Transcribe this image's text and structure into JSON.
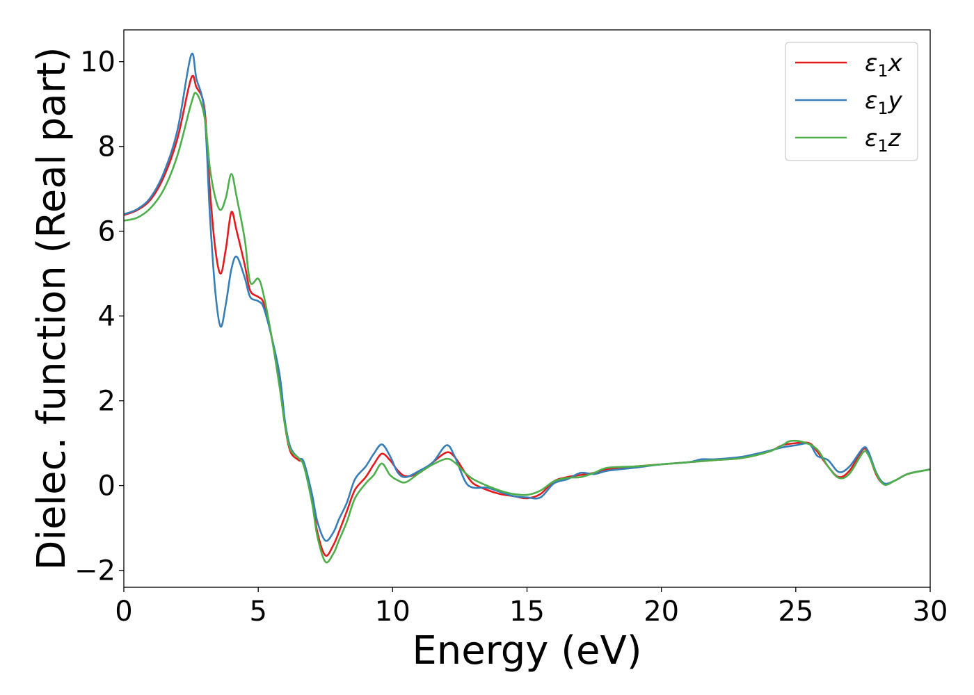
{
  "chart_data": {
    "type": "line",
    "xlabel": "Energy (eV)",
    "ylabel": "Dielec. function (Real part)",
    "xlim": [
      0,
      30
    ],
    "ylim": [
      -2.4,
      10.75
    ],
    "xticks": [
      0,
      5,
      10,
      15,
      20,
      25,
      30
    ],
    "yticks": [
      -2,
      0,
      2,
      4,
      6,
      8,
      10
    ],
    "xtick_labels": [
      "0",
      "5",
      "10",
      "15",
      "20",
      "25",
      "30"
    ],
    "ytick_labels": [
      "−2",
      "0",
      "2",
      "4",
      "6",
      "8",
      "10"
    ],
    "grid": false,
    "legend_position": "top-right",
    "series": [
      {
        "name": "ε1x",
        "label_base": "ε",
        "label_sub": "1",
        "label_var": "x",
        "color": "#e41a1c",
        "points": [
          [
            0,
            6.38
          ],
          [
            0.5,
            6.5
          ],
          [
            1.0,
            6.75
          ],
          [
            1.5,
            7.3
          ],
          [
            2.0,
            8.2
          ],
          [
            2.5,
            9.6
          ],
          [
            2.7,
            9.4
          ],
          [
            3.0,
            8.9
          ],
          [
            3.2,
            7.0
          ],
          [
            3.4,
            5.6
          ],
          [
            3.6,
            5.0
          ],
          [
            3.8,
            5.6
          ],
          [
            4.0,
            6.45
          ],
          [
            4.2,
            6.0
          ],
          [
            4.5,
            5.2
          ],
          [
            4.7,
            4.6
          ],
          [
            5.0,
            4.45
          ],
          [
            5.2,
            4.3
          ],
          [
            5.5,
            3.5
          ],
          [
            5.8,
            2.4
          ],
          [
            6.0,
            1.4
          ],
          [
            6.2,
            0.8
          ],
          [
            6.5,
            0.6
          ],
          [
            6.7,
            0.5
          ],
          [
            7.0,
            -0.3
          ],
          [
            7.2,
            -1.1
          ],
          [
            7.5,
            -1.65
          ],
          [
            7.8,
            -1.4
          ],
          [
            8.0,
            -1.1
          ],
          [
            8.3,
            -0.6
          ],
          [
            8.6,
            -0.1
          ],
          [
            9.0,
            0.2
          ],
          [
            9.3,
            0.5
          ],
          [
            9.6,
            0.75
          ],
          [
            9.9,
            0.6
          ],
          [
            10.2,
            0.35
          ],
          [
            10.5,
            0.22
          ],
          [
            11.0,
            0.3
          ],
          [
            11.5,
            0.55
          ],
          [
            12.0,
            0.78
          ],
          [
            12.3,
            0.68
          ],
          [
            12.7,
            0.3
          ],
          [
            13.0,
            0.05
          ],
          [
            13.5,
            -0.1
          ],
          [
            14.0,
            -0.2
          ],
          [
            14.5,
            -0.25
          ],
          [
            15.0,
            -0.3
          ],
          [
            15.5,
            -0.2
          ],
          [
            16.0,
            0.1
          ],
          [
            16.5,
            0.2
          ],
          [
            17.0,
            0.25
          ],
          [
            17.5,
            0.3
          ],
          [
            18.0,
            0.38
          ],
          [
            19.0,
            0.45
          ],
          [
            20.0,
            0.5
          ],
          [
            21.0,
            0.55
          ],
          [
            22.0,
            0.6
          ],
          [
            23.0,
            0.65
          ],
          [
            24.0,
            0.8
          ],
          [
            24.5,
            0.95
          ],
          [
            25.0,
            1.0
          ],
          [
            25.5,
            1.0
          ],
          [
            25.8,
            0.8
          ],
          [
            26.2,
            0.45
          ],
          [
            26.6,
            0.2
          ],
          [
            27.0,
            0.35
          ],
          [
            27.5,
            0.85
          ],
          [
            27.7,
            0.75
          ],
          [
            28.0,
            0.25
          ],
          [
            28.3,
            0.03
          ],
          [
            28.7,
            0.12
          ],
          [
            29.2,
            0.28
          ],
          [
            30,
            0.38
          ]
        ]
      },
      {
        "name": "ε1y",
        "label_base": "ε",
        "label_sub": "1",
        "label_var": "y",
        "color": "#377eb8",
        "points": [
          [
            0,
            6.4
          ],
          [
            0.5,
            6.52
          ],
          [
            1.0,
            6.8
          ],
          [
            1.5,
            7.4
          ],
          [
            2.0,
            8.4
          ],
          [
            2.5,
            10.15
          ],
          [
            2.7,
            9.6
          ],
          [
            3.0,
            8.8
          ],
          [
            3.2,
            6.4
          ],
          [
            3.4,
            4.6
          ],
          [
            3.6,
            3.75
          ],
          [
            3.8,
            4.3
          ],
          [
            4.0,
            5.1
          ],
          [
            4.2,
            5.4
          ],
          [
            4.5,
            4.9
          ],
          [
            4.7,
            4.45
          ],
          [
            5.0,
            4.35
          ],
          [
            5.2,
            4.2
          ],
          [
            5.5,
            3.5
          ],
          [
            5.8,
            2.6
          ],
          [
            6.0,
            1.5
          ],
          [
            6.2,
            0.9
          ],
          [
            6.5,
            0.65
          ],
          [
            6.7,
            0.55
          ],
          [
            7.0,
            -0.2
          ],
          [
            7.2,
            -0.85
          ],
          [
            7.5,
            -1.3
          ],
          [
            7.8,
            -1.1
          ],
          [
            8.0,
            -0.8
          ],
          [
            8.3,
            -0.4
          ],
          [
            8.6,
            0.15
          ],
          [
            9.0,
            0.45
          ],
          [
            9.3,
            0.75
          ],
          [
            9.6,
            0.97
          ],
          [
            9.9,
            0.7
          ],
          [
            10.2,
            0.3
          ],
          [
            10.5,
            0.2
          ],
          [
            11.0,
            0.35
          ],
          [
            11.5,
            0.55
          ],
          [
            12.0,
            0.95
          ],
          [
            12.3,
            0.7
          ],
          [
            12.7,
            0.1
          ],
          [
            13.0,
            -0.05
          ],
          [
            13.5,
            -0.05
          ],
          [
            14.0,
            -0.15
          ],
          [
            14.5,
            -0.25
          ],
          [
            15.0,
            -0.28
          ],
          [
            15.5,
            -0.28
          ],
          [
            16.0,
            0.05
          ],
          [
            16.5,
            0.15
          ],
          [
            17.0,
            0.3
          ],
          [
            17.5,
            0.27
          ],
          [
            18.0,
            0.35
          ],
          [
            19.0,
            0.42
          ],
          [
            20.0,
            0.5
          ],
          [
            21.0,
            0.55
          ],
          [
            21.5,
            0.62
          ],
          [
            22.0,
            0.62
          ],
          [
            23.0,
            0.68
          ],
          [
            24.0,
            0.82
          ],
          [
            24.5,
            0.9
          ],
          [
            25.0,
            0.95
          ],
          [
            25.5,
            0.98
          ],
          [
            25.8,
            0.7
          ],
          [
            26.2,
            0.6
          ],
          [
            26.6,
            0.32
          ],
          [
            27.0,
            0.45
          ],
          [
            27.5,
            0.88
          ],
          [
            27.7,
            0.8
          ],
          [
            28.0,
            0.3
          ],
          [
            28.3,
            0.05
          ],
          [
            28.7,
            0.12
          ],
          [
            29.2,
            0.28
          ],
          [
            30,
            0.38
          ]
        ]
      },
      {
        "name": "ε1z",
        "label_base": "ε",
        "label_sub": "1",
        "label_var": "z",
        "color": "#4daf4a",
        "points": [
          [
            0,
            6.25
          ],
          [
            0.5,
            6.32
          ],
          [
            1.0,
            6.55
          ],
          [
            1.5,
            7.0
          ],
          [
            2.0,
            7.8
          ],
          [
            2.5,
            9.0
          ],
          [
            2.7,
            9.25
          ],
          [
            3.0,
            8.7
          ],
          [
            3.2,
            7.5
          ],
          [
            3.4,
            6.8
          ],
          [
            3.6,
            6.5
          ],
          [
            3.8,
            6.8
          ],
          [
            4.0,
            7.35
          ],
          [
            4.2,
            6.8
          ],
          [
            4.5,
            5.8
          ],
          [
            4.7,
            4.8
          ],
          [
            5.0,
            4.88
          ],
          [
            5.2,
            4.5
          ],
          [
            5.5,
            3.5
          ],
          [
            5.8,
            2.3
          ],
          [
            6.0,
            1.4
          ],
          [
            6.2,
            0.85
          ],
          [
            6.5,
            0.65
          ],
          [
            6.7,
            0.45
          ],
          [
            7.0,
            -0.4
          ],
          [
            7.2,
            -1.2
          ],
          [
            7.5,
            -1.8
          ],
          [
            7.8,
            -1.6
          ],
          [
            8.0,
            -1.3
          ],
          [
            8.3,
            -0.85
          ],
          [
            8.6,
            -0.3
          ],
          [
            9.0,
            0.05
          ],
          [
            9.3,
            0.25
          ],
          [
            9.6,
            0.52
          ],
          [
            9.9,
            0.25
          ],
          [
            10.2,
            0.12
          ],
          [
            10.5,
            0.08
          ],
          [
            11.0,
            0.3
          ],
          [
            11.5,
            0.5
          ],
          [
            12.0,
            0.63
          ],
          [
            12.3,
            0.55
          ],
          [
            12.7,
            0.3
          ],
          [
            13.0,
            0.15
          ],
          [
            13.5,
            0.0
          ],
          [
            14.0,
            -0.12
          ],
          [
            14.5,
            -0.2
          ],
          [
            15.0,
            -0.22
          ],
          [
            15.5,
            -0.12
          ],
          [
            16.0,
            0.1
          ],
          [
            16.5,
            0.18
          ],
          [
            17.0,
            0.2
          ],
          [
            17.5,
            0.3
          ],
          [
            18.0,
            0.42
          ],
          [
            19.0,
            0.45
          ],
          [
            20.0,
            0.5
          ],
          [
            21.0,
            0.55
          ],
          [
            22.0,
            0.6
          ],
          [
            23.0,
            0.65
          ],
          [
            24.0,
            0.8
          ],
          [
            24.5,
            0.95
          ],
          [
            24.8,
            1.05
          ],
          [
            25.3,
            1.02
          ],
          [
            25.8,
            0.85
          ],
          [
            26.2,
            0.45
          ],
          [
            26.6,
            0.18
          ],
          [
            27.0,
            0.28
          ],
          [
            27.5,
            0.78
          ],
          [
            27.7,
            0.72
          ],
          [
            28.0,
            0.28
          ],
          [
            28.3,
            0.02
          ],
          [
            28.7,
            0.12
          ],
          [
            29.2,
            0.28
          ],
          [
            30,
            0.38
          ]
        ]
      }
    ]
  }
}
